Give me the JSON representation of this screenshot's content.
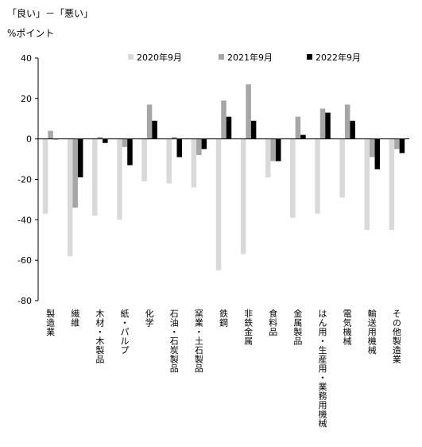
{
  "header": {
    "title": "「良い」－「悪い」",
    "unit": "%ポイント"
  },
  "colors": {
    "s2020": "#d9d9d9",
    "s2021": "#a6a6a6",
    "s2022": "#000000",
    "axis": "#000000"
  },
  "chart_data": {
    "type": "bar",
    "title": "",
    "ylabel": "%ポイント",
    "ylim": [
      -80,
      40
    ],
    "yticks": [
      40,
      20,
      0,
      -20,
      -40,
      -60,
      -80
    ],
    "grid": false,
    "legend_position": "top",
    "categories": [
      "製造業",
      "繊維",
      "木材・木製品",
      "紙・パルプ",
      "化学",
      "石油・石炭製品",
      "窯業・土石製品",
      "鉄鋼",
      "非鉄金属",
      "食料品",
      "金属製品",
      "はん用・生産用・業務用機械",
      "電気機械",
      "輸送用機械",
      "その他製造業"
    ],
    "series": [
      {
        "name": "2020年9月",
        "values": [
          -37,
          -58,
          -38,
          -40,
          -21,
          -22,
          -24,
          -65,
          -57,
          -19,
          -39,
          -37,
          -29,
          -45,
          -45
        ]
      },
      {
        "name": "2021年9月",
        "values": [
          4,
          -34,
          1,
          -4,
          17,
          1,
          -8,
          19,
          27,
          -11,
          11,
          15,
          17,
          -9,
          -5
        ]
      },
      {
        "name": "2022年9月",
        "values": [
          0,
          -19,
          -2,
          -13,
          9,
          -9,
          -5,
          11,
          9,
          -11,
          2,
          13,
          9,
          -15,
          -7
        ]
      }
    ]
  }
}
